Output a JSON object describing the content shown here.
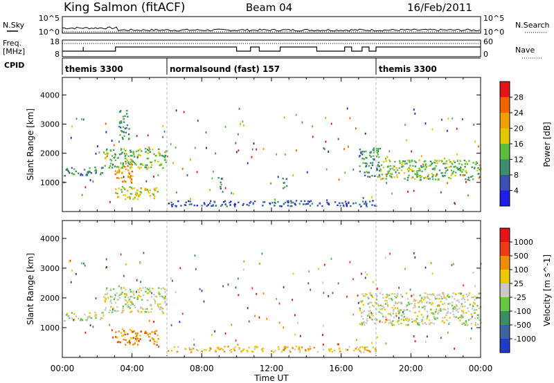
{
  "header": {
    "station": "King Salmon (fitACF)",
    "beam": "Beam 04",
    "date": "16/Feb/2011"
  },
  "top_panels": {
    "nsky_label": "N.Sky",
    "nsky_ticks": [
      "10^5",
      "10^0"
    ],
    "nsearch_label": "N.Search",
    "freq_label_1": "Freq.",
    "freq_label_2": "[MHz]",
    "freq_ticks": [
      "18",
      "8"
    ],
    "nave_ticks": [
      "60",
      "0"
    ],
    "nave_label": "Nave",
    "cpid_label": "CPID",
    "nsearch_ticks": [
      "10^5",
      "10^0"
    ],
    "freq_steps": {
      "times": [
        0,
        1.2,
        1.2,
        3.05,
        6.0,
        7.0,
        10.0,
        10.8,
        11.3,
        12.5,
        14.6,
        16.2,
        16.6,
        17.2,
        17.6,
        18.0,
        24.0
      ],
      "levels": [
        0,
        1,
        0,
        1,
        1,
        1,
        0,
        1,
        0,
        1,
        0,
        1,
        0,
        1,
        0,
        1,
        1
      ]
    },
    "cpid_segments": [
      {
        "label": "themis 3300",
        "start": 0,
        "end": 6
      },
      {
        "label": "normalsound (fast) 157",
        "start": 6,
        "end": 18
      },
      {
        "label": "themis 3300",
        "start": 18,
        "end": 24
      }
    ]
  },
  "chart_data": [
    {
      "type": "heatmap",
      "title": "",
      "ylabel": "Slant Range [km]",
      "xlim": [
        "00:00",
        "24:00"
      ],
      "ylim": [
        0,
        4600
      ],
      "yticks": [
        1000,
        2000,
        3000,
        4000
      ],
      "colorbar": {
        "label": "Power [dB]",
        "ticks": [
          4,
          8,
          12,
          16,
          20,
          24,
          28
        ],
        "colors": [
          "#1e1ee6",
          "#3a50b4",
          "#3c8c6e",
          "#5abe3c",
          "#e6c800",
          "#f0a000",
          "#f06400",
          "#e61414"
        ]
      },
      "regions": [
        {
          "t0": 0.0,
          "t1": 2.4,
          "r0": 1250,
          "r1": 1550,
          "level": 2
        },
        {
          "t0": 2.4,
          "t1": 6.0,
          "r0": 1500,
          "r1": 2200,
          "level": 3
        },
        {
          "t0": 3.0,
          "t1": 4.0,
          "r0": 1000,
          "r1": 1700,
          "level": 5
        },
        {
          "t0": 3.0,
          "t1": 5.5,
          "r0": 450,
          "r1": 900,
          "level": 4
        },
        {
          "t0": 3.2,
          "t1": 3.8,
          "r0": 2500,
          "r1": 3500,
          "level": 2
        },
        {
          "t0": 8.9,
          "t1": 9.2,
          "r0": 800,
          "r1": 1200,
          "level": 2
        },
        {
          "t0": 12.6,
          "t1": 12.9,
          "r0": 800,
          "r1": 1200,
          "level": 2
        },
        {
          "t0": 17.0,
          "t1": 18.2,
          "r0": 1200,
          "r1": 2200,
          "level": 2
        },
        {
          "t0": 18.2,
          "t1": 24.0,
          "r0": 1100,
          "r1": 1800,
          "level": 3
        },
        {
          "t0": 6.0,
          "t1": 18.0,
          "r0": 200,
          "r1": 400,
          "level": 1
        }
      ]
    },
    {
      "type": "heatmap",
      "title": "",
      "ylabel": "Slant Range [km]",
      "xlabel": "Time UT",
      "xticks": [
        "00:00",
        "04:00",
        "08:00",
        "12:00",
        "16:00",
        "20:00",
        "00:00"
      ],
      "ylim": [
        0,
        4600
      ],
      "yticks": [
        1000,
        2000,
        3000,
        4000
      ],
      "colorbar": {
        "label": "Velocity [m s^-1]",
        "ticks": [
          1000,
          500,
          100,
          25,
          -25,
          -100,
          -500,
          -1000
        ],
        "colors": [
          "#1e3cc8",
          "#3c64a0",
          "#3c8c64",
          "#64c83c",
          "#c8c8c8",
          "#f0c800",
          "#f08c00",
          "#f03c14",
          "#e61414"
        ]
      },
      "regions": [
        {
          "t0": 0.0,
          "t1": 2.4,
          "r0": 1250,
          "r1": 1550,
          "level": 4
        },
        {
          "t0": 2.4,
          "t1": 6.0,
          "r0": 1500,
          "r1": 2400,
          "level": 4
        },
        {
          "t0": 3.0,
          "t1": 5.5,
          "r0": 450,
          "r1": 1000,
          "level": 6
        },
        {
          "t0": 17.0,
          "t1": 24.0,
          "r0": 1100,
          "r1": 2200,
          "level": 4
        },
        {
          "t0": 12.5,
          "t1": 13.0,
          "r0": 200,
          "r1": 500,
          "level": 3
        },
        {
          "t0": 6.0,
          "t1": 18.0,
          "r0": 200,
          "r1": 400,
          "level": 5
        }
      ]
    }
  ]
}
